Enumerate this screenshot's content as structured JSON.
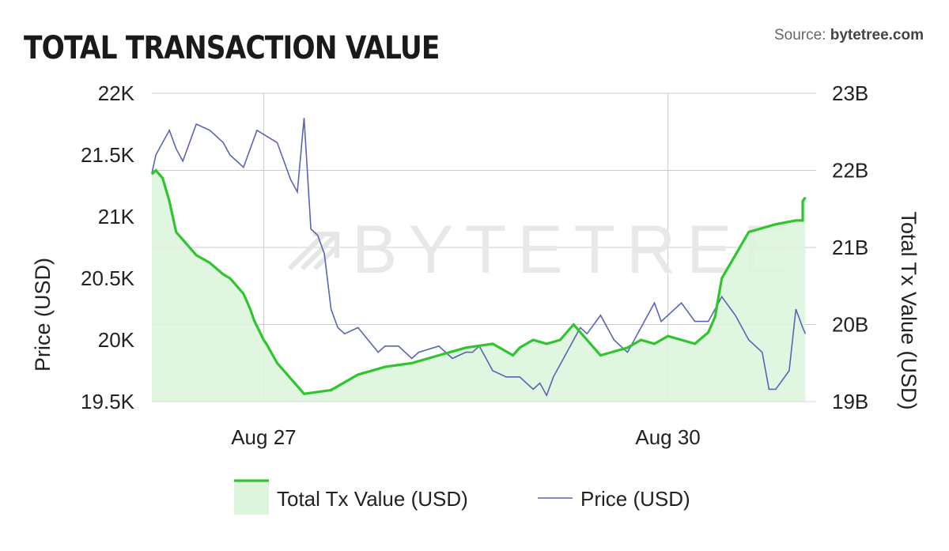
{
  "header": {
    "title": "TOTAL TRANSACTION VALUE",
    "source_prefix": "Source: ",
    "source_site": "bytetree.com"
  },
  "watermark": "BYTETREE",
  "colors": {
    "tx_line": "#2ec52e",
    "tx_fill": "#dcf5dc",
    "price_line": "#5a64b4",
    "grid": "#cccccc"
  },
  "chart_data": {
    "type": "line",
    "title": "TOTAL TRANSACTION VALUE",
    "x_ticks": [
      {
        "label": "Aug 27",
        "t": 3
      },
      {
        "label": "Aug 30",
        "t": 6
      }
    ],
    "x_range": [
      2.17,
      7.1
    ],
    "left_axis": {
      "label": "Price (USD)",
      "range": [
        19500,
        22000
      ],
      "ticks": [
        {
          "value": 22000,
          "label": "22K"
        },
        {
          "value": 21500,
          "label": "21.5K"
        },
        {
          "value": 21000,
          "label": "21K"
        },
        {
          "value": 20500,
          "label": "20.5K"
        },
        {
          "value": 20000,
          "label": "20K"
        },
        {
          "value": 19500,
          "label": "19.5K"
        }
      ]
    },
    "right_axis": {
      "label": "Total Tx Value (USD)",
      "range": [
        19,
        23
      ],
      "unit": "B",
      "ticks": [
        {
          "value": 23,
          "label": "23B"
        },
        {
          "value": 22,
          "label": "22B"
        },
        {
          "value": 21,
          "label": "21B"
        },
        {
          "value": 20,
          "label": "20B"
        },
        {
          "value": 19,
          "label": "19B"
        }
      ]
    },
    "legend": [
      {
        "name": "Total Tx Value (USD)",
        "style": "area"
      },
      {
        "name": "Price (USD)",
        "style": "line"
      }
    ],
    "series": [
      {
        "name": "Total Tx Value (USD)",
        "axis": "right",
        "x": [
          2.17,
          2.2,
          2.25,
          2.3,
          2.35,
          2.4,
          2.5,
          2.6,
          2.7,
          2.75,
          2.85,
          2.9,
          2.93,
          3.0,
          3.02,
          3.1,
          3.2,
          3.3,
          3.5,
          3.7,
          3.9,
          4.1,
          4.3,
          4.5,
          4.7,
          4.8,
          4.85,
          4.9,
          5.0,
          5.1,
          5.2,
          5.3,
          5.5,
          5.7,
          5.8,
          5.9,
          6.0,
          6.2,
          6.3,
          6.35,
          6.4,
          6.5,
          6.6,
          6.8,
          6.95,
          7.0,
          7.0,
          7.02
        ],
        "values": [
          21.95,
          22.0,
          21.9,
          21.6,
          21.2,
          21.1,
          20.9,
          20.8,
          20.65,
          20.6,
          20.4,
          20.2,
          20.05,
          19.8,
          19.75,
          19.5,
          19.3,
          19.1,
          19.15,
          19.35,
          19.45,
          19.5,
          19.6,
          19.7,
          19.75,
          19.65,
          19.6,
          19.7,
          19.8,
          19.75,
          19.8,
          20.0,
          19.6,
          19.7,
          19.8,
          19.75,
          19.85,
          19.75,
          19.9,
          20.1,
          20.6,
          20.9,
          21.2,
          21.3,
          21.35,
          21.35,
          21.6,
          21.65
        ]
      },
      {
        "name": "Price (USD)",
        "axis": "left",
        "x": [
          2.17,
          2.2,
          2.25,
          2.3,
          2.35,
          2.4,
          2.5,
          2.6,
          2.7,
          2.75,
          2.85,
          2.95,
          3.1,
          3.2,
          3.25,
          3.3,
          3.35,
          3.4,
          3.45,
          3.5,
          3.55,
          3.6,
          3.7,
          3.85,
          3.9,
          4.0,
          4.1,
          4.15,
          4.3,
          4.4,
          4.5,
          4.55,
          4.6,
          4.65,
          4.7,
          4.8,
          4.9,
          5.0,
          5.05,
          5.1,
          5.15,
          5.2,
          5.3,
          5.35,
          5.4,
          5.5,
          5.6,
          5.65,
          5.7,
          5.8,
          5.9,
          5.95,
          6.0,
          6.1,
          6.2,
          6.3,
          6.4,
          6.5,
          6.6,
          6.7,
          6.75,
          6.8,
          6.9,
          6.95,
          7.0,
          7.02
        ],
        "values": [
          21.35,
          21.5,
          21.6,
          21.7,
          21.55,
          21.45,
          21.75,
          21.7,
          21.6,
          21.5,
          21.4,
          21.7,
          21.6,
          21.3,
          21.2,
          21.8,
          20.9,
          20.85,
          20.7,
          20.25,
          20.1,
          20.05,
          20.1,
          19.9,
          19.95,
          19.95,
          19.85,
          19.9,
          19.95,
          19.85,
          19.9,
          19.9,
          19.95,
          19.85,
          19.75,
          19.7,
          19.7,
          19.6,
          19.65,
          19.55,
          19.7,
          19.8,
          20.0,
          20.1,
          20.05,
          20.2,
          20.0,
          19.95,
          19.9,
          20.1,
          20.3,
          20.15,
          20.2,
          20.3,
          20.15,
          20.15,
          20.35,
          20.2,
          20.0,
          19.9,
          19.6,
          19.6,
          19.75,
          20.25,
          20.1,
          20.05
        ]
      }
    ]
  }
}
